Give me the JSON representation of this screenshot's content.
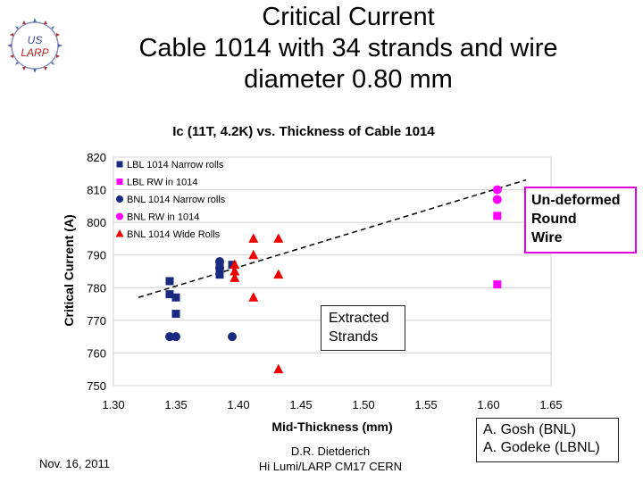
{
  "slide": {
    "title_lines": [
      "Critical Current",
      "Cable 1014 with 34 strands and wire",
      "diameter 0.80 mm"
    ],
    "logo": {
      "text_top": "US",
      "text_bottom": "LARP",
      "icon": "us-larp-logo"
    },
    "date": "Nov. 16, 2011",
    "footer_lines": [
      "D.R. Dietderich",
      "Hi Lumi/LARP CM17 CERN"
    ],
    "notes": {
      "undeformed_lines": [
        "Un-deformed",
        "Round",
        "Wire"
      ],
      "extracted_lines": [
        "Extracted",
        "Strands"
      ],
      "authors_lines": [
        "A.  Gosh (BNL)",
        "A. Godeke (LBNL)"
      ]
    }
  },
  "chart_data": {
    "type": "scatter",
    "title": "Ic (11T, 4.2K) vs. Thickness of Cable 1014",
    "xlabel": "Mid-Thickness (mm)",
    "ylabel": "Critical Current (A)",
    "xlim": [
      1.3,
      1.65
    ],
    "ylim": [
      750,
      820
    ],
    "x_ticks": [
      "1.30",
      "1.35",
      "1.40",
      "1.45",
      "1.50",
      "1.55",
      "1.60",
      "1.65"
    ],
    "y_ticks": [
      "750",
      "760",
      "770",
      "780",
      "790",
      "800",
      "810",
      "820"
    ],
    "grid": "horizontal",
    "legend_position": "top-left",
    "series": [
      {
        "name": "LBL 1014 Narrow rolls",
        "marker": "square",
        "color": "#1a2a80",
        "points": [
          [
            1.345,
            782
          ],
          [
            1.345,
            778
          ],
          [
            1.35,
            777
          ],
          [
            1.35,
            772
          ],
          [
            1.385,
            787
          ],
          [
            1.385,
            785
          ],
          [
            1.385,
            784
          ],
          [
            1.395,
            787
          ]
        ]
      },
      {
        "name": "LBL RW in 1014",
        "marker": "square",
        "color": "#ff00ff",
        "points": [
          [
            1.607,
            802
          ],
          [
            1.607,
            781
          ]
        ]
      },
      {
        "name": "BNL 1014 Narrow rolls",
        "marker": "circle",
        "color": "#1a2a80",
        "points": [
          [
            1.345,
            765
          ],
          [
            1.35,
            765
          ],
          [
            1.385,
            788
          ],
          [
            1.385,
            786
          ],
          [
            1.395,
            765
          ]
        ]
      },
      {
        "name": "BNL RW in 1014",
        "marker": "circle",
        "color": "#ff00ff",
        "points": [
          [
            1.607,
            810
          ],
          [
            1.607,
            807
          ]
        ]
      },
      {
        "name": "BNL 1014 Wide Rolls",
        "marker": "triangle",
        "color": "#ee0000",
        "points": [
          [
            1.397,
            787
          ],
          [
            1.397,
            785
          ],
          [
            1.397,
            783
          ],
          [
            1.412,
            795
          ],
          [
            1.412,
            790
          ],
          [
            1.412,
            777
          ],
          [
            1.432,
            795
          ],
          [
            1.432,
            784
          ],
          [
            1.432,
            755
          ]
        ]
      }
    ],
    "trendline": {
      "style": "dashed",
      "color": "#000000",
      "from": [
        1.32,
        777
      ],
      "to": [
        1.63,
        813
      ]
    }
  }
}
